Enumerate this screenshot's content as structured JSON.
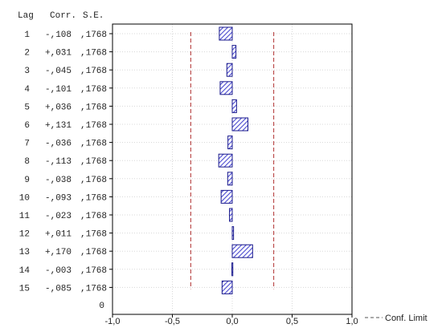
{
  "chart_data": {
    "type": "bar",
    "orientation": "horizontal",
    "headers": {
      "lag": "Lag",
      "corr": "Corr.",
      "se": "S.E."
    },
    "rows": [
      {
        "lag": "1",
        "corr": "-,108",
        "se": ",1768",
        "value": -0.108
      },
      {
        "lag": "2",
        "corr": "+,031",
        "se": ",1768",
        "value": 0.031
      },
      {
        "lag": "3",
        "corr": "-,045",
        "se": ",1768",
        "value": -0.045
      },
      {
        "lag": "4",
        "corr": "-,101",
        "se": ",1768",
        "value": -0.101
      },
      {
        "lag": "5",
        "corr": "+,036",
        "se": ",1768",
        "value": 0.036
      },
      {
        "lag": "6",
        "corr": "+,131",
        "se": ",1768",
        "value": 0.131
      },
      {
        "lag": "7",
        "corr": "-,036",
        "se": ",1768",
        "value": -0.036
      },
      {
        "lag": "8",
        "corr": "-,113",
        "se": ",1768",
        "value": -0.113
      },
      {
        "lag": "9",
        "corr": "-,038",
        "se": ",1768",
        "value": -0.038
      },
      {
        "lag": "10",
        "corr": "-,093",
        "se": ",1768",
        "value": -0.093
      },
      {
        "lag": "11",
        "corr": "-,023",
        "se": ",1768",
        "value": -0.023
      },
      {
        "lag": "12",
        "corr": "+,011",
        "se": ",1768",
        "value": 0.011
      },
      {
        "lag": "13",
        "corr": "+,170",
        "se": ",1768",
        "value": 0.17
      },
      {
        "lag": "14",
        "corr": "-,003",
        "se": ",1768",
        "value": -0.003
      },
      {
        "lag": "15",
        "corr": "-,085",
        "se": ",1768",
        "value": -0.085
      }
    ],
    "zero_row_label": "0",
    "xlim": [
      -1.0,
      1.0
    ],
    "xticks": [
      {
        "value": -1.0,
        "label": "-1,0"
      },
      {
        "value": -0.5,
        "label": "-0,5"
      },
      {
        "value": 0.0,
        "label": "0,0"
      },
      {
        "value": 0.5,
        "label": "0,5"
      },
      {
        "value": 1.0,
        "label": "1,0"
      }
    ],
    "conf_limit": 0.3465,
    "legend": {
      "label": "Conf. Limit",
      "position": "bottom-right"
    },
    "grid": true,
    "colors": {
      "bar_fill": "#4a4ad0",
      "bar_stroke": "#1a1a8c",
      "conf_line": "#b03030",
      "grid": "#d8d8d8"
    }
  }
}
